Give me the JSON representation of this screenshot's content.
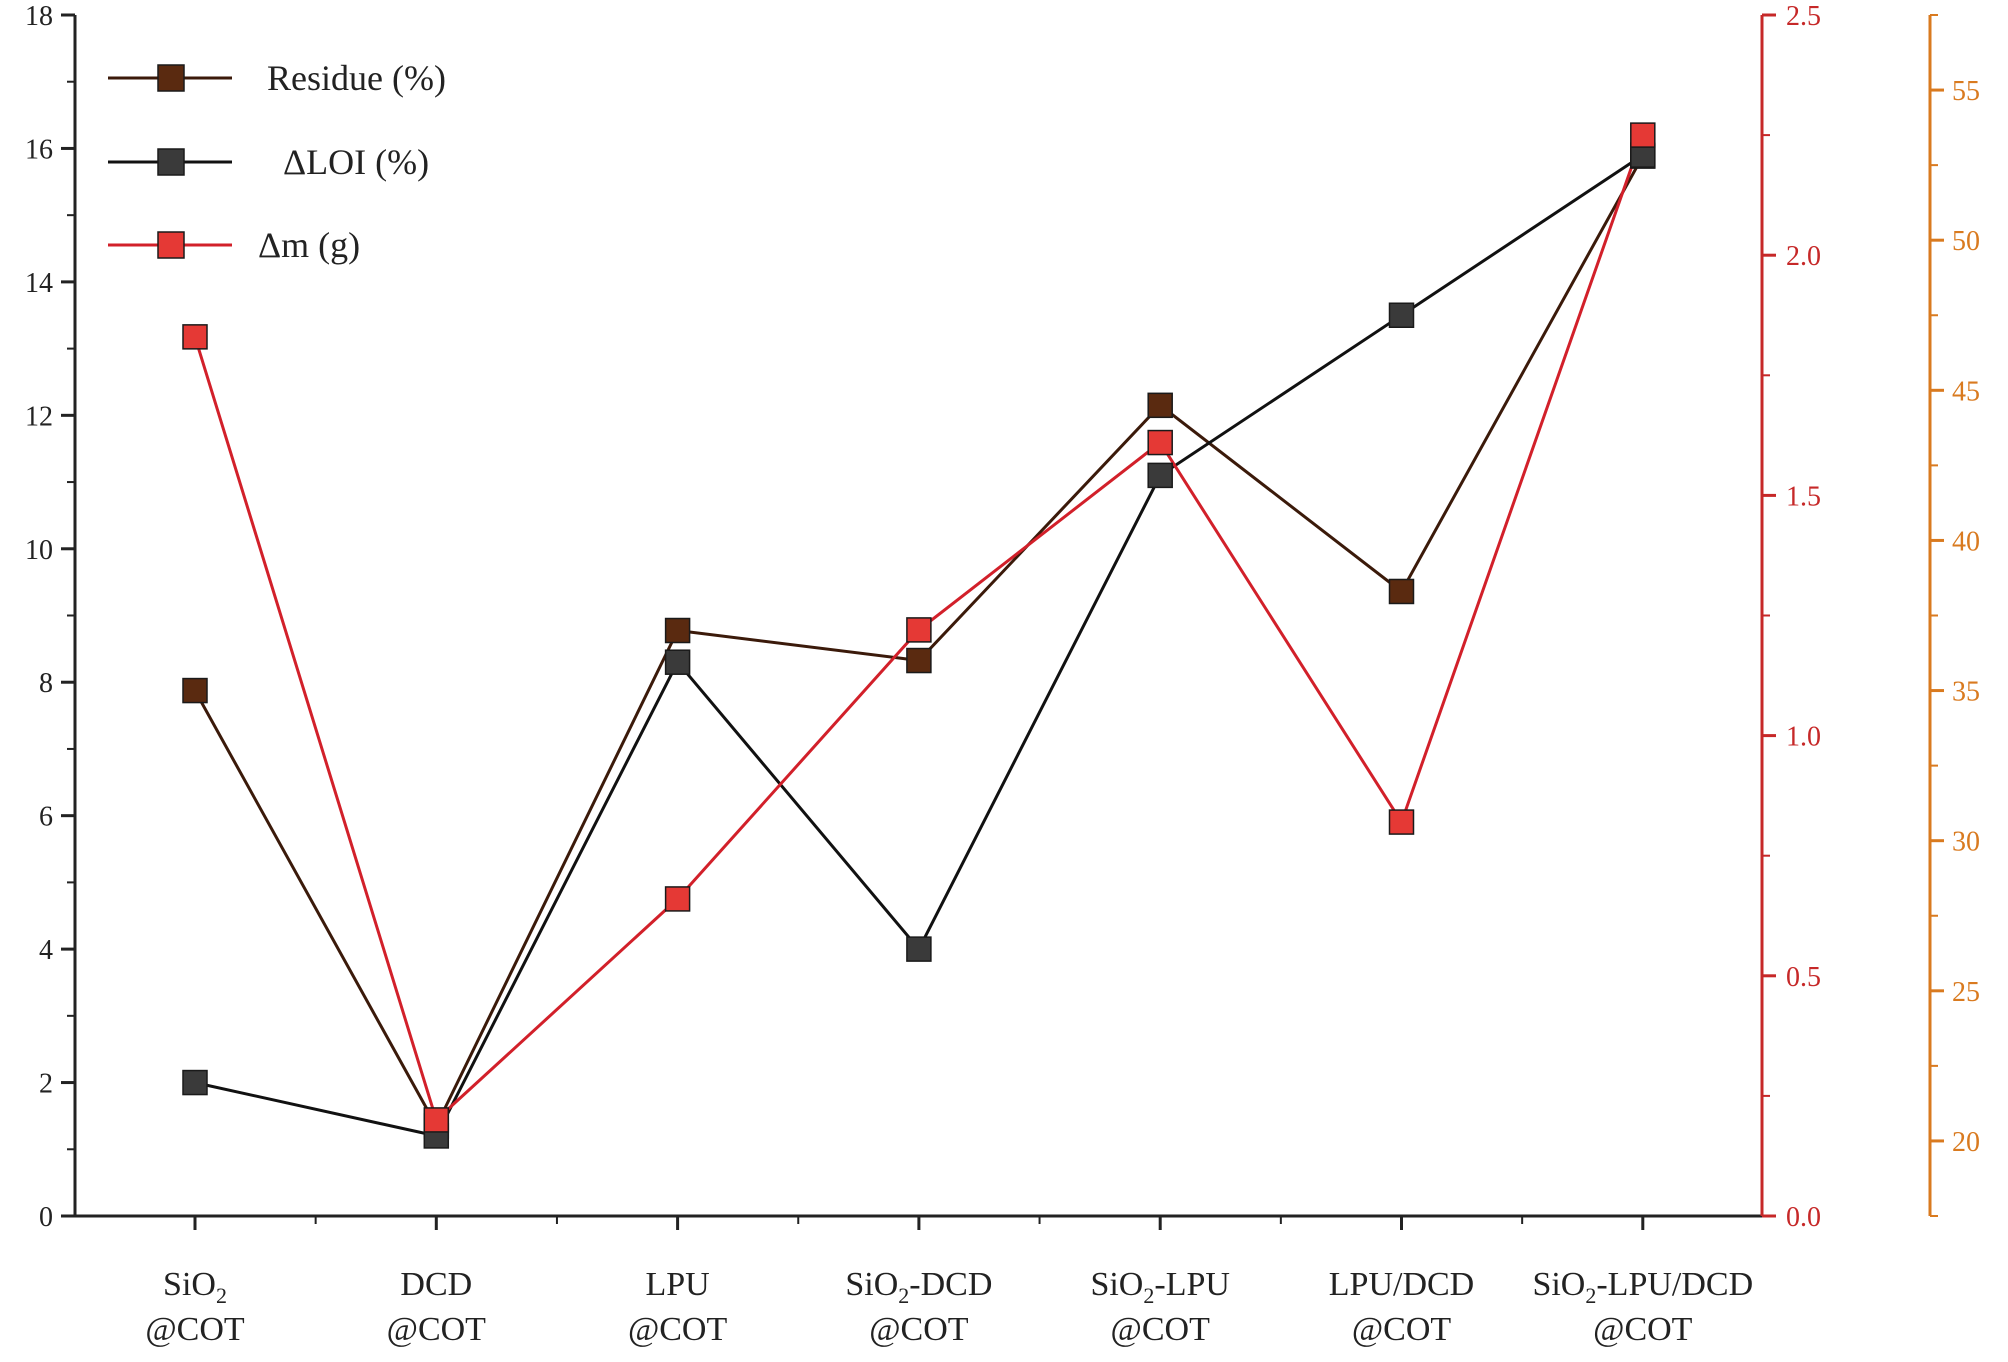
{
  "chart_data": {
    "type": "line",
    "categories": [
      {
        "line1_main": "SiO",
        "line1_sub": "2",
        "line1_tail": "",
        "line2": "@COT"
      },
      {
        "line1_main": "DCD",
        "line1_sub": "",
        "line1_tail": "",
        "line2": "@COT"
      },
      {
        "line1_main": "LPU",
        "line1_sub": "",
        "line1_tail": "",
        "line2": "@COT"
      },
      {
        "line1_main": "SiO",
        "line1_sub": "2",
        "line1_tail": "-DCD",
        "line2": "@COT"
      },
      {
        "line1_main": "SiO",
        "line1_sub": "2",
        "line1_tail": "-LPU",
        "line2": "@COT"
      },
      {
        "line1_main": "LPU/DCD",
        "line1_sub": "",
        "line1_tail": "",
        "line2": "@COT"
      },
      {
        "line1_main": "SiO",
        "line1_sub": "2",
        "line1_tail": "-LPU/DCD",
        "line2": "@COT"
      }
    ],
    "series": [
      {
        "name": "Residue (%)",
        "axis": "right2",
        "color": "#3b1a0a",
        "marker_color": "#5a2a10",
        "values": [
          35,
          20.5,
          37,
          36,
          44.5,
          38.3,
          52.8
        ]
      },
      {
        "name": "ΔLOI (%)",
        "axis": "left",
        "color": "#111111",
        "marker_color": "#3a3a3a",
        "values": [
          2.0,
          1.2,
          8.3,
          4.0,
          11.1,
          13.5,
          15.9
        ]
      },
      {
        "name": "Δm (g)",
        "axis": "right1",
        "color": "#d2202a",
        "marker_color": "#e53935",
        "values": [
          1.83,
          0.2,
          0.66,
          1.22,
          1.61,
          0.82,
          2.25
        ]
      }
    ],
    "axes": {
      "left": {
        "min": 0,
        "max": 18,
        "ticks": [
          "0",
          "2",
          "4",
          "6",
          "8",
          "10",
          "12",
          "14",
          "16",
          "18"
        ],
        "color": "#222222"
      },
      "right1": {
        "min": 0,
        "max": 2.5,
        "ticks": [
          "0.0",
          "0.5",
          "1.0",
          "1.5",
          "2.0",
          "2.5"
        ],
        "color": "#c62828"
      },
      "right2": {
        "min": 17.5,
        "max": 57.5,
        "ticks": [
          "20",
          "25",
          "30",
          "35",
          "40",
          "45",
          "50",
          "55"
        ],
        "color": "#d97a1f"
      }
    },
    "legend": [
      "Residue (%)",
      "ΔLOI (%)",
      "Δm (g)"
    ],
    "legend_position": "top-left",
    "title": "",
    "xlabel": "",
    "ylabel": ""
  }
}
